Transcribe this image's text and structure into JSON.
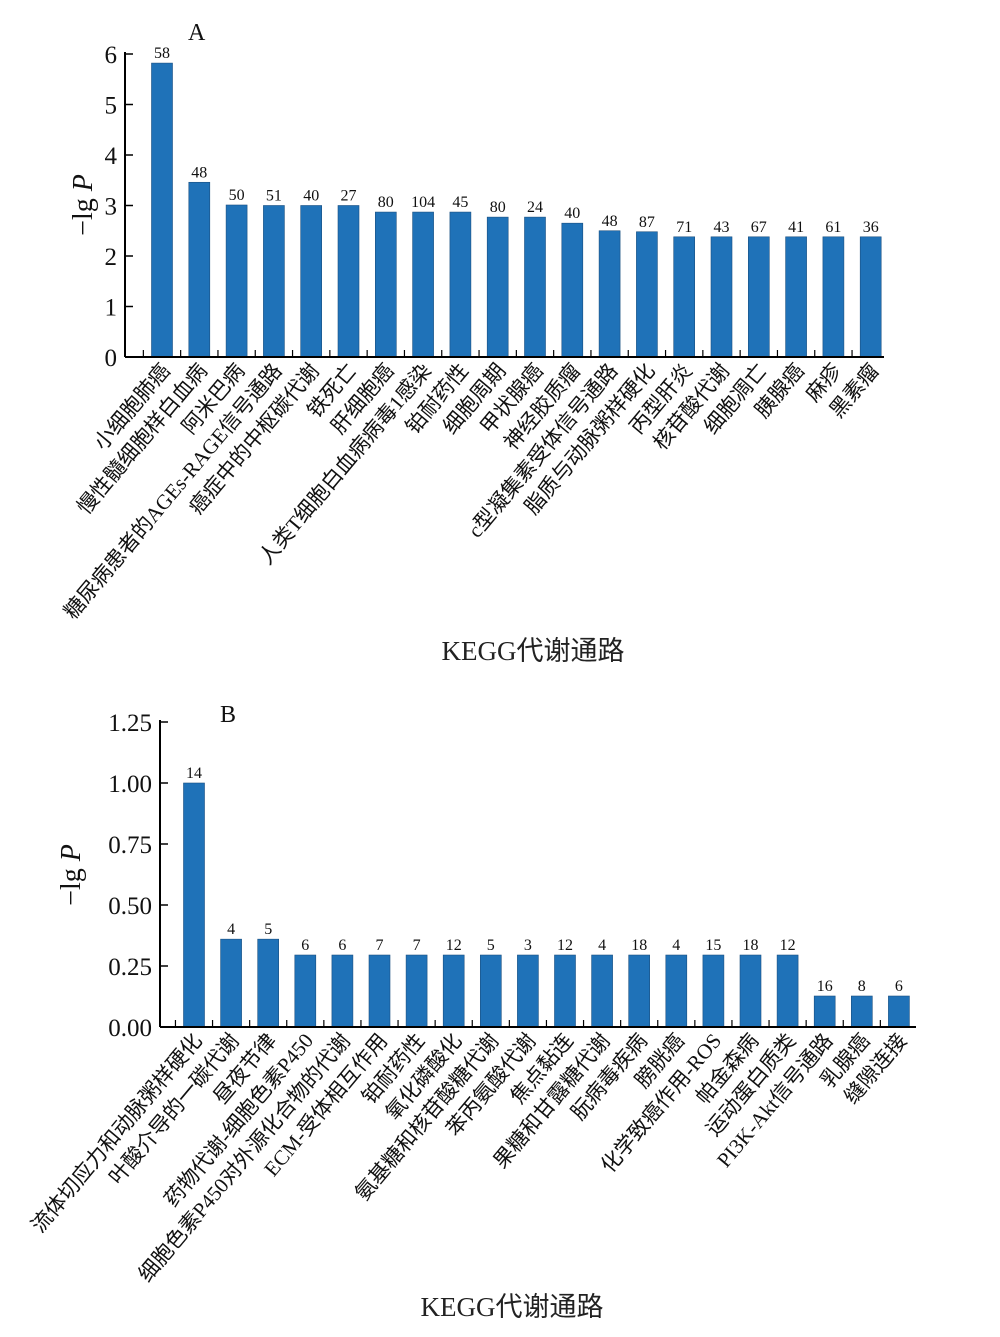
{
  "chart_data": [
    {
      "type": "bar",
      "panel": "A",
      "xlabel": "KEGG代谢通路",
      "ylabel": "−lg P",
      "ylim": [
        0,
        6
      ],
      "yticks": [
        "0",
        "1",
        "2",
        "3",
        "4",
        "5",
        "6"
      ],
      "bar_color": "#1f72b8",
      "categories": [
        "小细胞肺癌",
        "慢性髓细胞样白血病",
        "阿米巴病",
        "糖尿病患者的AGEs-RAGE信号通路",
        "癌症中的中枢碳代谢",
        "铁死亡",
        "肝细胞癌",
        "人类T细胞白血病病毒1感染",
        "铂耐药性",
        "细胞周期",
        "甲状腺癌",
        "神经胶质瘤",
        "c型凝集素受体信号通路",
        "脂质与动脉粥样硬化",
        "丙型肝炎",
        "核苷酸代谢",
        "细胞凋亡",
        "胰腺癌",
        "麻疹",
        "黑素瘤"
      ],
      "values": [
        5.82,
        3.46,
        3.01,
        3.0,
        3.0,
        3.0,
        2.87,
        2.87,
        2.87,
        2.77,
        2.77,
        2.65,
        2.5,
        2.48,
        2.38,
        2.38,
        2.38,
        2.38,
        2.38,
        2.38
      ],
      "counts": [
        "58",
        "48",
        "50",
        "51",
        "40",
        "27",
        "80",
        "104",
        "45",
        "80",
        "24",
        "40",
        "48",
        "87",
        "71",
        "43",
        "67",
        "41",
        "61",
        "36"
      ]
    },
    {
      "type": "bar",
      "panel": "B",
      "xlabel": "KEGG代谢通路",
      "ylabel": "−lg P",
      "ylim": [
        0,
        1.25
      ],
      "yticks": [
        "0.00",
        "0.25",
        "0.50",
        "0.75",
        "1.00",
        "1.25"
      ],
      "bar_color": "#1f72b8",
      "categories": [
        "流体切应力和动脉粥样硬化",
        "叶酸介导的一碳代谢",
        "昼夜节律",
        "药物代谢-细胞色素P450",
        "细胞色素P450对外源化合物的代谢",
        "ECM-受体相互作用",
        "铂耐药性",
        "氧化磷酸化",
        "氨基糖和核苷酸糖代谢",
        "苯丙氨酸代谢",
        "焦点黏连",
        "果糖和甘露糖代谢",
        "朊病毒疾病",
        "膀胱癌",
        "化学致癌作用-ROS",
        "帕金森病",
        "运动蛋白质类",
        "PI3K-Akt信号通路",
        "乳腺癌",
        "缝隙连接"
      ],
      "values": [
        1.0,
        0.36,
        0.36,
        0.295,
        0.295,
        0.295,
        0.295,
        0.295,
        0.295,
        0.295,
        0.295,
        0.295,
        0.295,
        0.295,
        0.295,
        0.295,
        0.295,
        0.127,
        0.127,
        0.127
      ],
      "counts": [
        "14",
        "4",
        "5",
        "6",
        "6",
        "7",
        "7",
        "12",
        "5",
        "3",
        "12",
        "4",
        "18",
        "4",
        "15",
        "18",
        "12",
        "16",
        "8",
        "6"
      ]
    }
  ]
}
